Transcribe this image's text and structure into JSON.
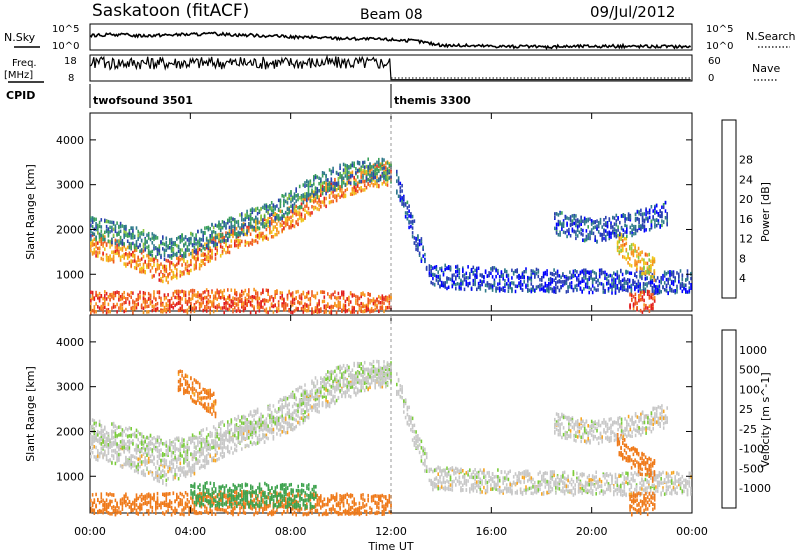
{
  "header": {
    "station": "Saskatoon (fitACF)",
    "beam": "Beam 08",
    "date": "09/Jul/2012"
  },
  "strip_labels": {
    "nsky": "N.Sky",
    "nsearch": "N.Search",
    "freq": "Freq.",
    "freq_unit": "[MHz]",
    "nave": "Nave",
    "cpid": "CPID",
    "nsky_top": "10^5",
    "nsky_bot": "10^0",
    "nsearch_top": "10^5",
    "nsearch_bot": "10^0",
    "freq_top": "18",
    "freq_bot": "8",
    "nave_top": "60",
    "nave_bot": "0"
  },
  "cpid": [
    {
      "name": "twofsound 3501",
      "start_hour": 0
    },
    {
      "name": "themis 3300",
      "start_hour": 12
    }
  ],
  "axes": {
    "ylabel": "Slant Range [km]",
    "xlabel": "Time UT",
    "y_ticks": [
      "1000",
      "2000",
      "3000",
      "4000"
    ],
    "y_values": [
      1000,
      2000,
      3000,
      4000
    ],
    "ylim": [
      180,
      4600
    ],
    "x_ticks": [
      "00:00",
      "04:00",
      "08:00",
      "12:00",
      "16:00",
      "20:00",
      "00:00"
    ],
    "x_values": [
      0,
      4,
      8,
      12,
      16,
      20,
      24
    ],
    "xlim": [
      0,
      24
    ]
  },
  "colorbars": {
    "power": {
      "label": "Power [dB]",
      "ticks": [
        "4",
        "8",
        "12",
        "16",
        "20",
        "24",
        "28"
      ],
      "colors": [
        "#0000ff",
        "#2a3fb0",
        "#2f7a8a",
        "#3aa05a",
        "#8dc63f",
        "#f0c419",
        "#f7941d",
        "#ef5a1f",
        "#e21d1d"
      ]
    },
    "velocity": {
      "label": "Velocity [m s^-1]",
      "ticks": [
        "1000",
        "500",
        "100",
        "25",
        "-25",
        "-100",
        "-500",
        "-1000"
      ],
      "colors": [
        "#1f3fae",
        "#2f7f8f",
        "#3fa34f",
        "#7acc3a",
        "#c8c8c8",
        "#f6a623",
        "#ef7a1a",
        "#e84a1a",
        "#e01010"
      ]
    }
  },
  "chart_data": {
    "type": "heatmap",
    "title": "Saskatoon (fitACF) Beam 08 09/Jul/2012",
    "xlabel": "Time UT",
    "ylabel": "Slant Range [km]",
    "xlim": [
      0,
      24
    ],
    "ylim": [
      180,
      4600
    ],
    "power_bands": [
      {
        "t": [
          0,
          1,
          2,
          3,
          4,
          5,
          6,
          7,
          8,
          9,
          10,
          11,
          12
        ],
        "r": [
          1700,
          1550,
          1350,
          1100,
          1300,
          1650,
          1900,
          2050,
          2300,
          2700,
          3000,
          3200,
          3300
        ],
        "level": 24
      },
      {
        "t": [
          0,
          1,
          2,
          3,
          4,
          5,
          6,
          7,
          8,
          9,
          10,
          11,
          12
        ],
        "r": [
          2050,
          1950,
          1800,
          1600,
          1700,
          1950,
          2150,
          2350,
          2650,
          3000,
          3250,
          3350,
          3350
        ],
        "level": 10
      },
      {
        "t": [
          12.2,
          12.6,
          13,
          13.4
        ],
        "r": [
          3100,
          2500,
          1800,
          1300
        ],
        "level": 6
      },
      {
        "t": [
          13.5,
          15,
          17,
          19,
          21,
          22.5,
          24
        ],
        "r": [
          1000,
          950,
          900,
          880,
          870,
          870,
          870
        ],
        "level": 5
      },
      {
        "t": [
          21,
          21.5,
          22,
          22.5
        ],
        "r": [
          1800,
          1500,
          1300,
          1150
        ],
        "level": 20
      },
      {
        "t": [
          18.5,
          20,
          21.5,
          23
        ],
        "r": [
          2200,
          2000,
          2150,
          2400
        ],
        "level": 6
      },
      {
        "t": [
          0,
          2,
          4,
          6,
          8,
          10,
          12
        ],
        "r": [
          400,
          380,
          420,
          450,
          400,
          380,
          350
        ],
        "level": 26
      },
      {
        "t": [
          21.5,
          22.5
        ],
        "r": [
          400,
          400
        ],
        "level": 28
      }
    ],
    "velocity_bands": [
      {
        "t": [
          0,
          1,
          2,
          3,
          4,
          5,
          6,
          7,
          8,
          9,
          10,
          11,
          12
        ],
        "r": [
          1700,
          1550,
          1350,
          1100,
          1300,
          1650,
          1900,
          2050,
          2300,
          2700,
          3000,
          3200,
          3300
        ],
        "value": 0
      },
      {
        "t": [
          0,
          1,
          2,
          3,
          4,
          5,
          6,
          7,
          8,
          9,
          10,
          11,
          12
        ],
        "r": [
          2050,
          1950,
          1800,
          1600,
          1700,
          1950,
          2150,
          2350,
          2650,
          3000,
          3250,
          3350,
          3350
        ],
        "value": 10
      },
      {
        "t": [
          12.2,
          12.6,
          13,
          13.4
        ],
        "r": [
          3100,
          2500,
          1800,
          1300
        ],
        "value": 5
      },
      {
        "t": [
          13.5,
          15,
          17,
          19,
          21,
          22.5,
          24
        ],
        "r": [
          1000,
          950,
          900,
          880,
          870,
          870,
          870
        ],
        "value": 0
      },
      {
        "t": [
          21,
          21.5,
          22,
          22.5
        ],
        "r": [
          1800,
          1500,
          1300,
          1150
        ],
        "value": -300
      },
      {
        "t": [
          18.5,
          20,
          21.5,
          23
        ],
        "r": [
          2200,
          2000,
          2150,
          2400
        ],
        "value": 0
      },
      {
        "t": [
          0,
          2,
          4,
          6,
          8,
          10,
          12
        ],
        "r": [
          400,
          380,
          420,
          450,
          400,
          380,
          350
        ],
        "value": -150
      },
      {
        "t": [
          4,
          5,
          6,
          7,
          8,
          9
        ],
        "r": [
          650,
          620,
          600,
          620,
          600,
          580
        ],
        "value": 150
      },
      {
        "t": [
          3.5,
          4,
          4.5,
          5
        ],
        "r": [
          3200,
          3000,
          2800,
          2600
        ],
        "value": -120
      },
      {
        "t": [
          21.5,
          22.5
        ],
        "r": [
          400,
          400
        ],
        "value": -200
      }
    ],
    "nsky": {
      "x": [
        0,
        1,
        2,
        3,
        4,
        5,
        6,
        7,
        8,
        9,
        10,
        11,
        12,
        13,
        14,
        16,
        18,
        20,
        22,
        24
      ],
      "y": [
        0.55,
        0.6,
        0.55,
        0.58,
        0.6,
        0.62,
        0.58,
        0.55,
        0.5,
        0.48,
        0.45,
        0.42,
        0.4,
        0.35,
        0.18,
        0.15,
        0.12,
        0.15,
        0.14,
        0.13
      ]
    },
    "freq_level": {
      "x": [
        0,
        12,
        12.01,
        24
      ],
      "y": [
        0.7,
        0.7,
        0.05,
        0.05
      ]
    }
  }
}
